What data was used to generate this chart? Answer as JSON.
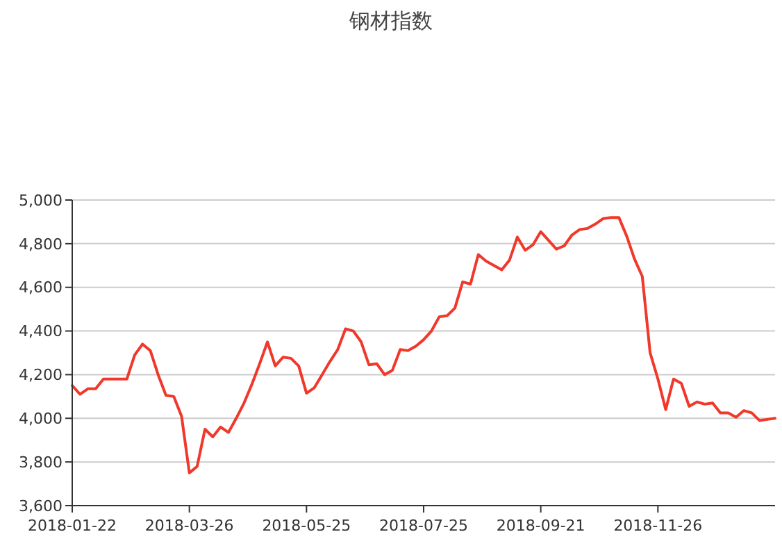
{
  "chart_data": {
    "type": "line",
    "title": "钢材指数",
    "categories": [
      "2018-01-22",
      null,
      null,
      null,
      null,
      null,
      null,
      null,
      null,
      null,
      null,
      null,
      null,
      null,
      null,
      "2018-03-26",
      null,
      null,
      null,
      null,
      null,
      null,
      null,
      null,
      null,
      null,
      null,
      null,
      null,
      null,
      "2018-05-25",
      null,
      null,
      null,
      null,
      null,
      null,
      null,
      null,
      null,
      null,
      null,
      null,
      null,
      null,
      "2018-07-25",
      null,
      null,
      null,
      null,
      null,
      null,
      null,
      null,
      null,
      null,
      null,
      null,
      null,
      null,
      "2018-09-21",
      null,
      null,
      null,
      null,
      null,
      null,
      null,
      null,
      null,
      null,
      null,
      null,
      null,
      null,
      "2018-11-26",
      null,
      null,
      null,
      null,
      null,
      null,
      null,
      null,
      null,
      null,
      null,
      null,
      null,
      null,
      null
    ],
    "series": [
      {
        "color": "#f0382b",
        "values": [
          4150,
          4110,
          4135,
          4135,
          4180,
          4180,
          4180,
          4180,
          4290,
          4340,
          4310,
          4200,
          4105,
          4100,
          4010,
          3750,
          3780,
          3950,
          3915,
          3960,
          3935,
          4000,
          4070,
          4155,
          4250,
          4350,
          4240,
          4280,
          4275,
          4240,
          4115,
          4140,
          4200,
          4260,
          4315,
          4410,
          4400,
          4350,
          4245,
          4250,
          4200,
          4220,
          4315,
          4310,
          4330,
          4360,
          4400,
          4465,
          4470,
          4505,
          4625,
          4615,
          4750,
          4720,
          4700,
          4680,
          4725,
          4830,
          4770,
          4795,
          4855,
          4815,
          4775,
          4790,
          4840,
          4865,
          4870,
          4890,
          4915,
          4920,
          4920,
          4835,
          4730,
          4650,
          4300,
          4180,
          4040,
          4180,
          4160,
          4055,
          4075,
          4065,
          4070,
          4025,
          4025,
          4005,
          4035,
          4025,
          3990,
          3995,
          4000
        ]
      }
    ],
    "ylim": [
      3600,
      5000
    ],
    "yticks": [
      {
        "value": 3600,
        "label": "3,600"
      },
      {
        "value": 3800,
        "label": "3,800"
      },
      {
        "value": 4000,
        "label": "4,000"
      },
      {
        "value": 4200,
        "label": "4,200"
      },
      {
        "value": 4400,
        "label": "4,400"
      },
      {
        "value": 4600,
        "label": "4,600"
      },
      {
        "value": 4800,
        "label": "4,800"
      },
      {
        "value": 5000,
        "label": "5,000"
      }
    ],
    "grid": "y",
    "line_style": "solid"
  }
}
